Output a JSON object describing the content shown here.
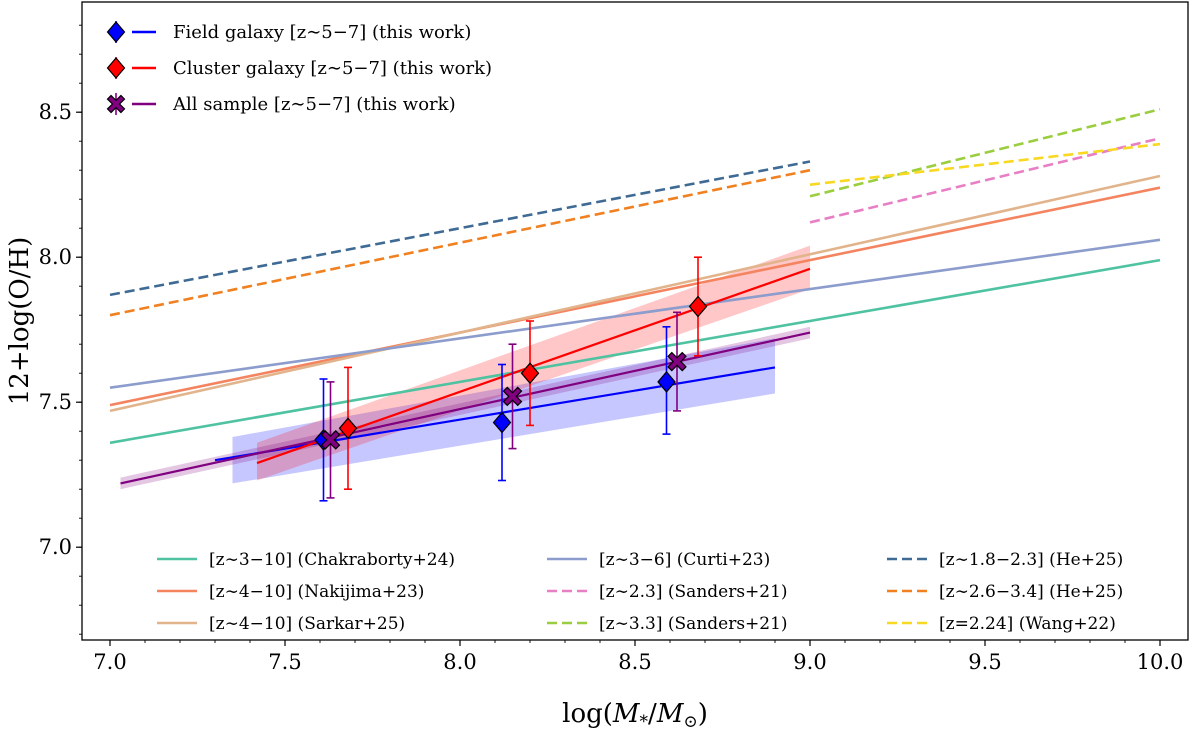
{
  "chart_data": {
    "type": "line",
    "title": "",
    "xlabel": "log(M_*/M_⊙)",
    "ylabel": "12+log(O/H)",
    "xlim": [
      6.92,
      10.08
    ],
    "ylim": [
      6.68,
      8.88
    ],
    "xticks": [
      "7.0",
      "7.5",
      "8.0",
      "8.5",
      "9.0",
      "9.5",
      "10.0"
    ],
    "xtick_values": [
      7.0,
      7.5,
      8.0,
      8.5,
      9.0,
      9.5,
      10.0
    ],
    "yticks": [
      "7.0",
      "7.5",
      "8.0",
      "8.5"
    ],
    "ytick_values": [
      7.0,
      7.5,
      8.0,
      8.5
    ],
    "grid": false,
    "this_work_series": [
      {
        "name": "Field galaxy [z∼5−7] (this work)",
        "color": "#0000ff",
        "marker": "diamond",
        "points": [
          {
            "x": 7.61,
            "y": 7.37,
            "yerr_low": 0.21,
            "yerr_high": 0.21
          },
          {
            "x": 8.12,
            "y": 7.43,
            "yerr_low": 0.2,
            "yerr_high": 0.2
          },
          {
            "x": 8.59,
            "y": 7.57,
            "yerr_low": 0.18,
            "yerr_high": 0.19
          }
        ],
        "fit": {
          "x": [
            7.3,
            8.9
          ],
          "y": [
            7.3,
            7.62
          ]
        },
        "band": {
          "x": [
            7.35,
            8.9
          ],
          "upper": [
            7.38,
            7.72
          ],
          "lower": [
            7.22,
            7.53
          ]
        }
      },
      {
        "name": "Cluster galaxy [z∼5−7] (this work)",
        "color": "#ff0000",
        "marker": "diamond",
        "points": [
          {
            "x": 7.68,
            "y": 7.41,
            "yerr_low": 0.21,
            "yerr_high": 0.21
          },
          {
            "x": 8.2,
            "y": 7.6,
            "yerr_low": 0.18,
            "yerr_high": 0.18
          },
          {
            "x": 8.68,
            "y": 7.83,
            "yerr_low": 0.17,
            "yerr_high": 0.17
          }
        ],
        "fit": {
          "x": [
            7.42,
            9.0
          ],
          "y": [
            7.29,
            7.96
          ]
        },
        "band": {
          "x": [
            7.42,
            9.0
          ],
          "upper": [
            7.36,
            8.04
          ],
          "lower": [
            7.23,
            7.89
          ]
        }
      },
      {
        "name": "All sample [z∼5−7] (this work)",
        "color": "#800080",
        "marker": "x",
        "points": [
          {
            "x": 7.63,
            "y": 7.37,
            "yerr_low": 0.2,
            "yerr_high": 0.2
          },
          {
            "x": 8.15,
            "y": 7.52,
            "yerr_low": 0.18,
            "yerr_high": 0.18
          },
          {
            "x": 8.62,
            "y": 7.64,
            "yerr_low": 0.17,
            "yerr_high": 0.17
          }
        ],
        "fit": {
          "x": [
            7.03,
            9.0
          ],
          "y": [
            7.22,
            7.74
          ]
        },
        "band": {
          "x": [
            7.03,
            9.0
          ],
          "upper": [
            7.24,
            7.76
          ],
          "lower": [
            7.2,
            7.72
          ]
        }
      }
    ],
    "literature_relations": [
      {
        "name": "[z∼3−10] (Chakraborty+24)",
        "color": "#4fc3a1",
        "dashed": false,
        "x": [
          7.0,
          10.0
        ],
        "y": [
          7.36,
          7.99
        ]
      },
      {
        "name": "[z∼4−10] (Nakijima+23)",
        "color": "#f4845f",
        "dashed": false,
        "x": [
          7.0,
          10.0
        ],
        "y": [
          7.49,
          8.24
        ]
      },
      {
        "name": "[z∼4−10] (Sarkar+25)",
        "color": "#e2b48c",
        "dashed": false,
        "x": [
          7.0,
          10.0
        ],
        "y": [
          7.47,
          8.28
        ]
      },
      {
        "name": "[z∼3−6] (Curti+23)",
        "color": "#8c9ccc",
        "dashed": false,
        "x": [
          7.0,
          10.0
        ],
        "y": [
          7.55,
          8.06
        ]
      },
      {
        "name": "[z∼2.3] (Sanders+21)",
        "color": "#e87fc5",
        "dashed": true,
        "x": [
          9.0,
          10.0
        ],
        "y": [
          8.12,
          8.41
        ]
      },
      {
        "name": "[z∼3.3] (Sanders+21)",
        "color": "#9bce3e",
        "dashed": true,
        "x": [
          9.0,
          10.0
        ],
        "y": [
          8.21,
          8.51
        ]
      },
      {
        "name": "[z∼1.8−2.3] (He+25)",
        "color": "#3e6a94",
        "dashed": true,
        "x": [
          7.0,
          9.0
        ],
        "y": [
          7.87,
          8.33
        ]
      },
      {
        "name": "[z∼2.6−3.4] (He+25)",
        "color": "#f08020",
        "dashed": true,
        "x": [
          7.0,
          9.0
        ],
        "y": [
          7.8,
          8.3
        ]
      },
      {
        "name": "[z=2.24] (Wang+22)",
        "color": "#f8d820",
        "dashed": true,
        "x": [
          9.0,
          10.0
        ],
        "y": [
          8.25,
          8.39
        ]
      }
    ]
  }
}
